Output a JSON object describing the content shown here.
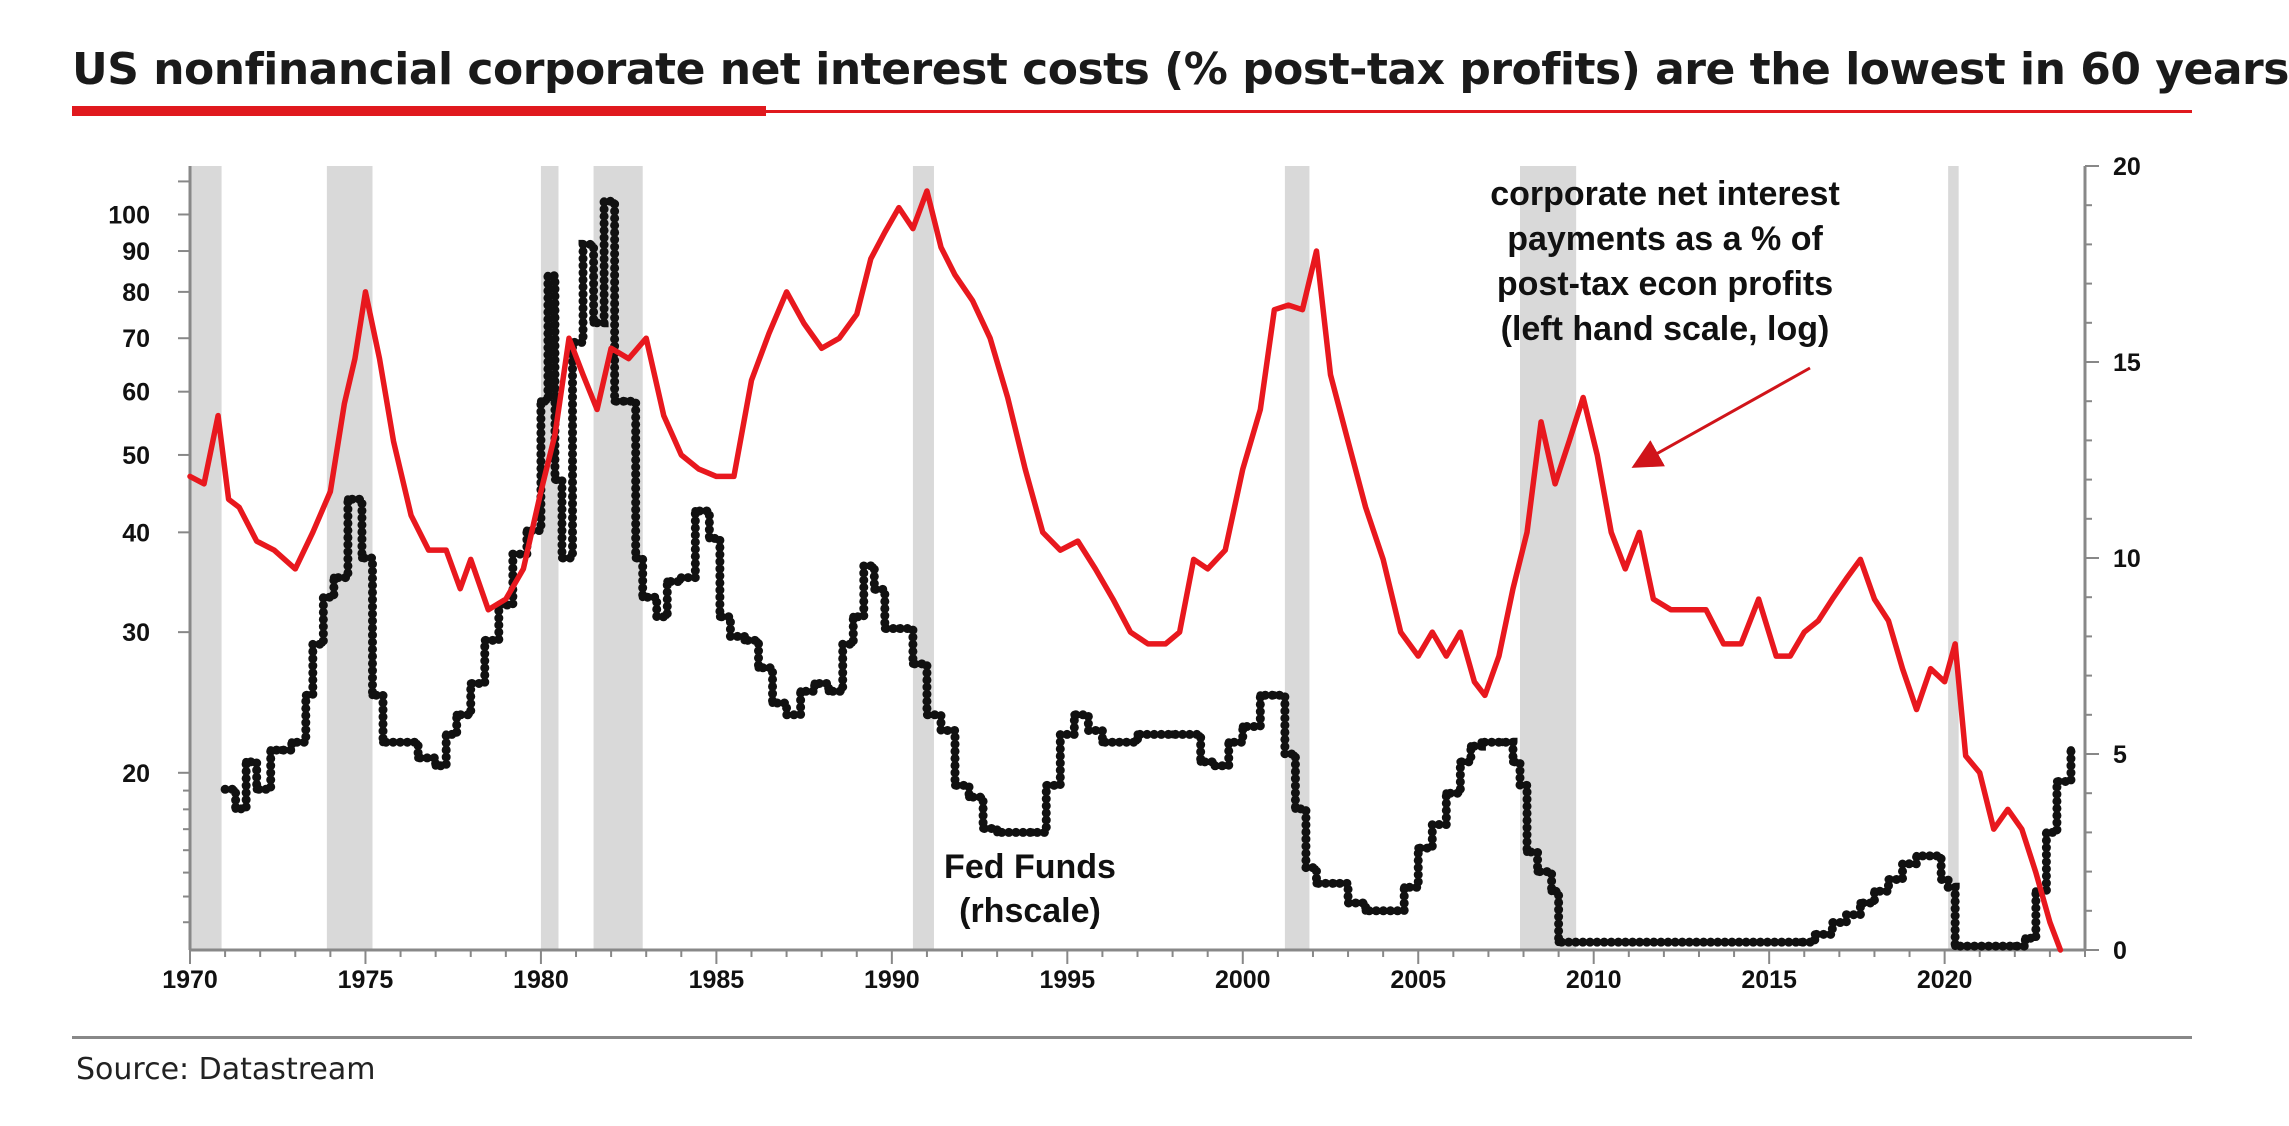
{
  "header": {
    "title": "US nonfinancial corporate net interest costs (% post-tax profits) are the lowest in 60 years"
  },
  "footer": {
    "source": "Source: Datastream"
  },
  "colors": {
    "accent": "#e0191e",
    "interest_line": "#e8181e",
    "fedfunds_line": "#111111",
    "recession_band": "#d9d9d9",
    "axis": "#888888"
  },
  "chart_data": {
    "type": "line",
    "title": "US nonfinancial corporate net interest costs (% post-tax profits) are the lowest in 60 years",
    "x_axis": {
      "range": [
        1970,
        2024
      ],
      "ticks": [
        1970,
        1975,
        1980,
        1985,
        1990,
        1995,
        2000,
        2005,
        2010,
        2015,
        2020
      ]
    },
    "left_axis": {
      "scale": "log",
      "range": [
        12,
        115
      ],
      "ticks": [
        20,
        30,
        40,
        50,
        60,
        70,
        80,
        90,
        100
      ]
    },
    "right_axis": {
      "scale": "linear",
      "range": [
        0,
        20
      ],
      "ticks": [
        0,
        5,
        10,
        15,
        20
      ]
    },
    "recessions": [
      [
        1969.9,
        1970.9
      ],
      [
        1973.9,
        1975.2
      ],
      [
        1980.0,
        1980.5
      ],
      [
        1981.5,
        1982.9
      ],
      [
        1990.6,
        1991.2
      ],
      [
        2001.2,
        2001.9
      ],
      [
        2007.9,
        2009.5
      ],
      [
        2020.1,
        2020.4
      ]
    ],
    "annotations": {
      "interest_label": [
        "corporate net interest",
        "payments as a % of",
        "post-tax econ profits",
        "(left hand scale, log)"
      ],
      "fedfunds_label": [
        "Fed Funds",
        "(rhscale)"
      ]
    },
    "series": [
      {
        "name": "Corporate net interest payments as a % of post-tax econ profits",
        "axis": "left",
        "x": [
          1970.0,
          1970.4,
          1970.8,
          1971.1,
          1971.4,
          1971.9,
          1972.4,
          1973.0,
          1973.5,
          1974.0,
          1974.4,
          1974.7,
          1975.0,
          1975.4,
          1975.8,
          1976.3,
          1976.8,
          1977.3,
          1977.7,
          1978.0,
          1978.5,
          1979.0,
          1979.5,
          1980.0,
          1980.4,
          1980.8,
          1981.2,
          1981.6,
          1982.0,
          1982.5,
          1983.0,
          1983.5,
          1984.0,
          1984.5,
          1985.0,
          1985.5,
          1986.0,
          1986.5,
          1987.0,
          1987.5,
          1988.0,
          1988.5,
          1989.0,
          1989.4,
          1989.8,
          1990.2,
          1990.6,
          1991.0,
          1991.4,
          1991.8,
          1992.3,
          1992.8,
          1993.3,
          1993.8,
          1994.3,
          1994.8,
          1995.3,
          1995.8,
          1996.3,
          1996.8,
          1997.3,
          1997.8,
          1998.2,
          1998.6,
          1999.0,
          1999.5,
          2000.0,
          2000.5,
          2000.9,
          2001.3,
          2001.7,
          2002.1,
          2002.5,
          2003.0,
          2003.5,
          2004.0,
          2004.5,
          2005.0,
          2005.4,
          2005.8,
          2006.2,
          2006.6,
          2006.9,
          2007.3,
          2007.7,
          2008.1,
          2008.5,
          2008.9,
          2009.3,
          2009.7,
          2010.1,
          2010.5,
          2010.9,
          2011.3,
          2011.7,
          2012.2,
          2012.7,
          2013.2,
          2013.7,
          2014.2,
          2014.7,
          2015.2,
          2015.6,
          2016.0,
          2016.4,
          2016.8,
          2017.2,
          2017.6,
          2018.0,
          2018.4,
          2018.8,
          2019.2,
          2019.6,
          2020.0,
          2020.3,
          2020.6,
          2021.0,
          2021.4,
          2021.8,
          2022.2,
          2022.6,
          2023.0,
          2023.3
        ],
        "values": [
          47,
          46,
          56,
          44,
          43,
          39,
          38,
          36,
          40,
          45,
          58,
          66,
          80,
          66,
          52,
          42,
          38,
          38,
          34,
          37,
          32,
          33,
          36,
          45,
          53,
          70,
          63,
          57,
          68,
          66,
          70,
          56,
          50,
          48,
          47,
          47,
          62,
          71,
          80,
          73,
          68,
          70,
          75,
          88,
          95,
          102,
          96,
          107,
          91,
          84,
          78,
          70,
          59,
          48,
          40,
          38,
          39,
          36,
          33,
          30,
          29,
          29,
          30,
          37,
          36,
          38,
          48,
          57,
          76,
          77,
          76,
          90,
          63,
          52,
          43,
          37,
          30,
          28,
          30,
          28,
          30,
          26,
          25,
          28,
          34,
          40,
          55,
          46,
          52,
          59,
          50,
          40,
          36,
          40,
          33,
          32,
          32,
          32,
          29,
          29,
          33,
          28,
          28,
          30,
          31,
          33,
          35,
          37,
          33,
          31,
          27,
          24,
          27,
          26,
          29,
          21,
          20,
          17,
          18,
          17,
          15,
          13,
          12
        ]
      },
      {
        "name": "Fed Funds",
        "axis": "right",
        "x": [
          1971.0,
          1971.3,
          1971.6,
          1971.9,
          1972.3,
          1972.6,
          1972.9,
          1973.3,
          1973.5,
          1973.8,
          1974.1,
          1974.5,
          1974.9,
          1975.2,
          1975.5,
          1976.0,
          1976.5,
          1977.0,
          1977.3,
          1977.6,
          1978.0,
          1978.4,
          1978.8,
          1979.2,
          1979.6,
          1980.0,
          1980.2,
          1980.4,
          1980.6,
          1980.9,
          1981.2,
          1981.5,
          1981.8,
          1982.1,
          1982.4,
          1982.7,
          1982.9,
          1983.3,
          1983.6,
          1984.0,
          1984.4,
          1984.8,
          1985.1,
          1985.4,
          1985.8,
          1986.2,
          1986.6,
          1987.0,
          1987.4,
          1987.8,
          1988.2,
          1988.6,
          1988.9,
          1989.2,
          1989.5,
          1989.8,
          1990.2,
          1990.6,
          1991.0,
          1991.4,
          1991.8,
          1992.2,
          1992.6,
          1993.0,
          1994.0,
          1994.4,
          1994.8,
          1995.2,
          1995.6,
          1996.0,
          1997.0,
          1998.0,
          1998.8,
          1999.2,
          1999.6,
          2000.0,
          2000.5,
          2000.9,
          2001.2,
          2001.5,
          2001.8,
          2002.1,
          2002.6,
          2003.0,
          2003.5,
          2004.0,
          2004.6,
          2005.0,
          2005.4,
          2005.8,
          2006.2,
          2006.5,
          2006.8,
          2007.4,
          2007.7,
          2007.9,
          2008.1,
          2008.4,
          2008.8,
          2009.0,
          2015.9,
          2016.3,
          2016.8,
          2017.2,
          2017.6,
          2018.0,
          2018.4,
          2018.8,
          2019.2,
          2019.6,
          2019.9,
          2020.1,
          2020.3,
          2022.0,
          2022.3,
          2022.6,
          2022.9,
          2023.2,
          2023.6
        ],
        "values": [
          4.1,
          3.6,
          4.8,
          4.1,
          5.1,
          5.1,
          5.3,
          6.5,
          7.8,
          9.0,
          9.5,
          11.5,
          10.0,
          6.5,
          5.3,
          5.3,
          4.9,
          4.7,
          5.5,
          6.0,
          6.8,
          7.9,
          8.8,
          10.1,
          10.7,
          14.0,
          17.2,
          12.0,
          10.0,
          15.5,
          18.0,
          16.0,
          19.1,
          14.0,
          14.0,
          10.0,
          9.0,
          8.5,
          9.4,
          9.5,
          11.2,
          10.5,
          8.5,
          8.0,
          7.9,
          7.2,
          6.3,
          6.0,
          6.6,
          6.8,
          6.6,
          7.8,
          8.5,
          9.8,
          9.2,
          8.2,
          8.2,
          7.3,
          6.0,
          5.6,
          4.2,
          3.9,
          3.1,
          3.0,
          3.0,
          4.2,
          5.5,
          6.0,
          5.6,
          5.3,
          5.5,
          5.5,
          4.8,
          4.7,
          5.3,
          5.7,
          6.5,
          6.5,
          5.0,
          3.6,
          2.1,
          1.7,
          1.7,
          1.2,
          1.0,
          1.0,
          1.6,
          2.6,
          3.2,
          4.0,
          4.8,
          5.2,
          5.3,
          5.3,
          4.8,
          4.2,
          2.5,
          2.0,
          1.5,
          0.2,
          0.2,
          0.4,
          0.7,
          0.9,
          1.2,
          1.5,
          1.8,
          2.2,
          2.4,
          2.4,
          1.8,
          1.6,
          0.1,
          0.1,
          0.3,
          1.5,
          3.0,
          4.3,
          5.1
        ]
      }
    ]
  }
}
